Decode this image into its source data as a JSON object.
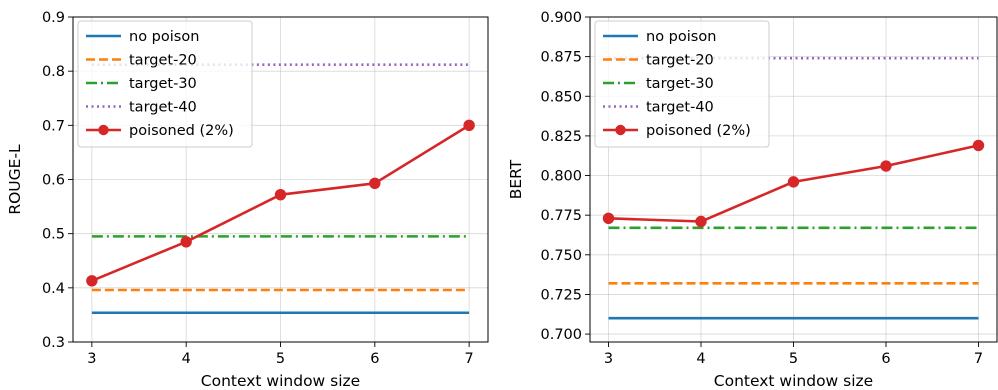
{
  "chart_data": [
    {
      "type": "line",
      "xlabel": "Context window size",
      "ylabel": "ROUGE-L",
      "x": [
        3,
        4,
        5,
        6,
        7
      ],
      "xlim": [
        2.8,
        7.2
      ],
      "ylim": [
        0.3,
        0.9
      ],
      "yticks": [
        0.3,
        0.4,
        0.5,
        0.6,
        0.7,
        0.8,
        0.9
      ],
      "ytick_labels": [
        "0.3",
        "0.4",
        "0.5",
        "0.6",
        "0.7",
        "0.8",
        "0.9"
      ],
      "xticks": [
        3,
        4,
        5,
        6,
        7
      ],
      "xtick_labels": [
        "3",
        "4",
        "5",
        "6",
        "7"
      ],
      "grid": true,
      "legend": "top-left",
      "series": [
        {
          "name": "no poison",
          "values": [
            0.354,
            0.354,
            0.354,
            0.354,
            0.354
          ],
          "color": "#1f77b4",
          "style": "solid"
        },
        {
          "name": "target-20",
          "values": [
            0.396,
            0.396,
            0.396,
            0.396,
            0.396
          ],
          "color": "#ff7f0e",
          "style": "dashed"
        },
        {
          "name": "target-30",
          "values": [
            0.495,
            0.495,
            0.495,
            0.495,
            0.495
          ],
          "color": "#2ca02c",
          "style": "dashdot"
        },
        {
          "name": "target-40",
          "values": [
            0.812,
            0.812,
            0.812,
            0.812,
            0.812
          ],
          "color": "#9467bd",
          "style": "dotted"
        },
        {
          "name": "poisoned (2%)",
          "values": [
            0.413,
            0.485,
            0.572,
            0.593,
            0.7
          ],
          "color": "#d62728",
          "style": "solid",
          "marker": "circle"
        }
      ]
    },
    {
      "type": "line",
      "xlabel": "Context window size",
      "ylabel": "BERT",
      "x": [
        3,
        4,
        5,
        6,
        7
      ],
      "xlim": [
        2.8,
        7.2
      ],
      "ylim": [
        0.695,
        0.9
      ],
      "yticks": [
        0.7,
        0.725,
        0.75,
        0.775,
        0.8,
        0.825,
        0.85,
        0.875,
        0.9
      ],
      "ytick_labels": [
        "0.700",
        "0.725",
        "0.750",
        "0.775",
        "0.800",
        "0.825",
        "0.850",
        "0.875",
        "0.900"
      ],
      "xticks": [
        3,
        4,
        5,
        6,
        7
      ],
      "xtick_labels": [
        "3",
        "4",
        "5",
        "6",
        "7"
      ],
      "grid": true,
      "legend": "top-left",
      "series": [
        {
          "name": "no poison",
          "values": [
            0.71,
            0.71,
            0.71,
            0.71,
            0.71
          ],
          "color": "#1f77b4",
          "style": "solid"
        },
        {
          "name": "target-20",
          "values": [
            0.732,
            0.732,
            0.732,
            0.732,
            0.732
          ],
          "color": "#ff7f0e",
          "style": "dashed"
        },
        {
          "name": "target-30",
          "values": [
            0.767,
            0.767,
            0.767,
            0.767,
            0.767
          ],
          "color": "#2ca02c",
          "style": "dashdot"
        },
        {
          "name": "target-40",
          "values": [
            0.874,
            0.874,
            0.874,
            0.874,
            0.874
          ],
          "color": "#9467bd",
          "style": "dotted"
        },
        {
          "name": "poisoned (2%)",
          "values": [
            0.773,
            0.771,
            0.796,
            0.806,
            0.819
          ],
          "color": "#d62728",
          "style": "solid",
          "marker": "circle"
        }
      ]
    }
  ]
}
